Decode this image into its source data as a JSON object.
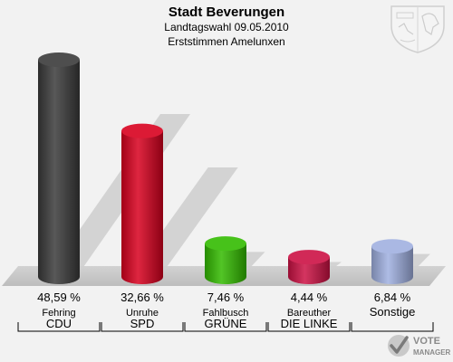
{
  "header": {
    "title": "Stadt Beverungen",
    "subtitle": "Landtagswahl 09.05.2010",
    "subtitle2": "Erststimmen Amelunxen"
  },
  "logo": {
    "line1": "VOTE",
    "line2": "MANAGER",
    "crest_icon": "coat-of-arms-icon"
  },
  "chart_data": {
    "type": "bar",
    "title": "Stadt Beverungen",
    "ylim": [
      0,
      50
    ],
    "value_unit": "%",
    "categories": [
      "CDU",
      "SPD",
      "GRÜNE",
      "DIE LINKE",
      "Sonstige"
    ],
    "candidates": [
      "Fehring",
      "Unruhe",
      "Fahlbusch",
      "Bareuther",
      ""
    ],
    "values": [
      48.59,
      32.66,
      7.46,
      4.44,
      6.84
    ],
    "value_labels": [
      "48,59 %",
      "32,66 %",
      "7,46 %",
      "4,44 %",
      "6,84 %"
    ],
    "colors": [
      "#3a3a3a",
      "#d8001e",
      "#33bb00",
      "#cc1144",
      "#a0b0e0"
    ]
  }
}
